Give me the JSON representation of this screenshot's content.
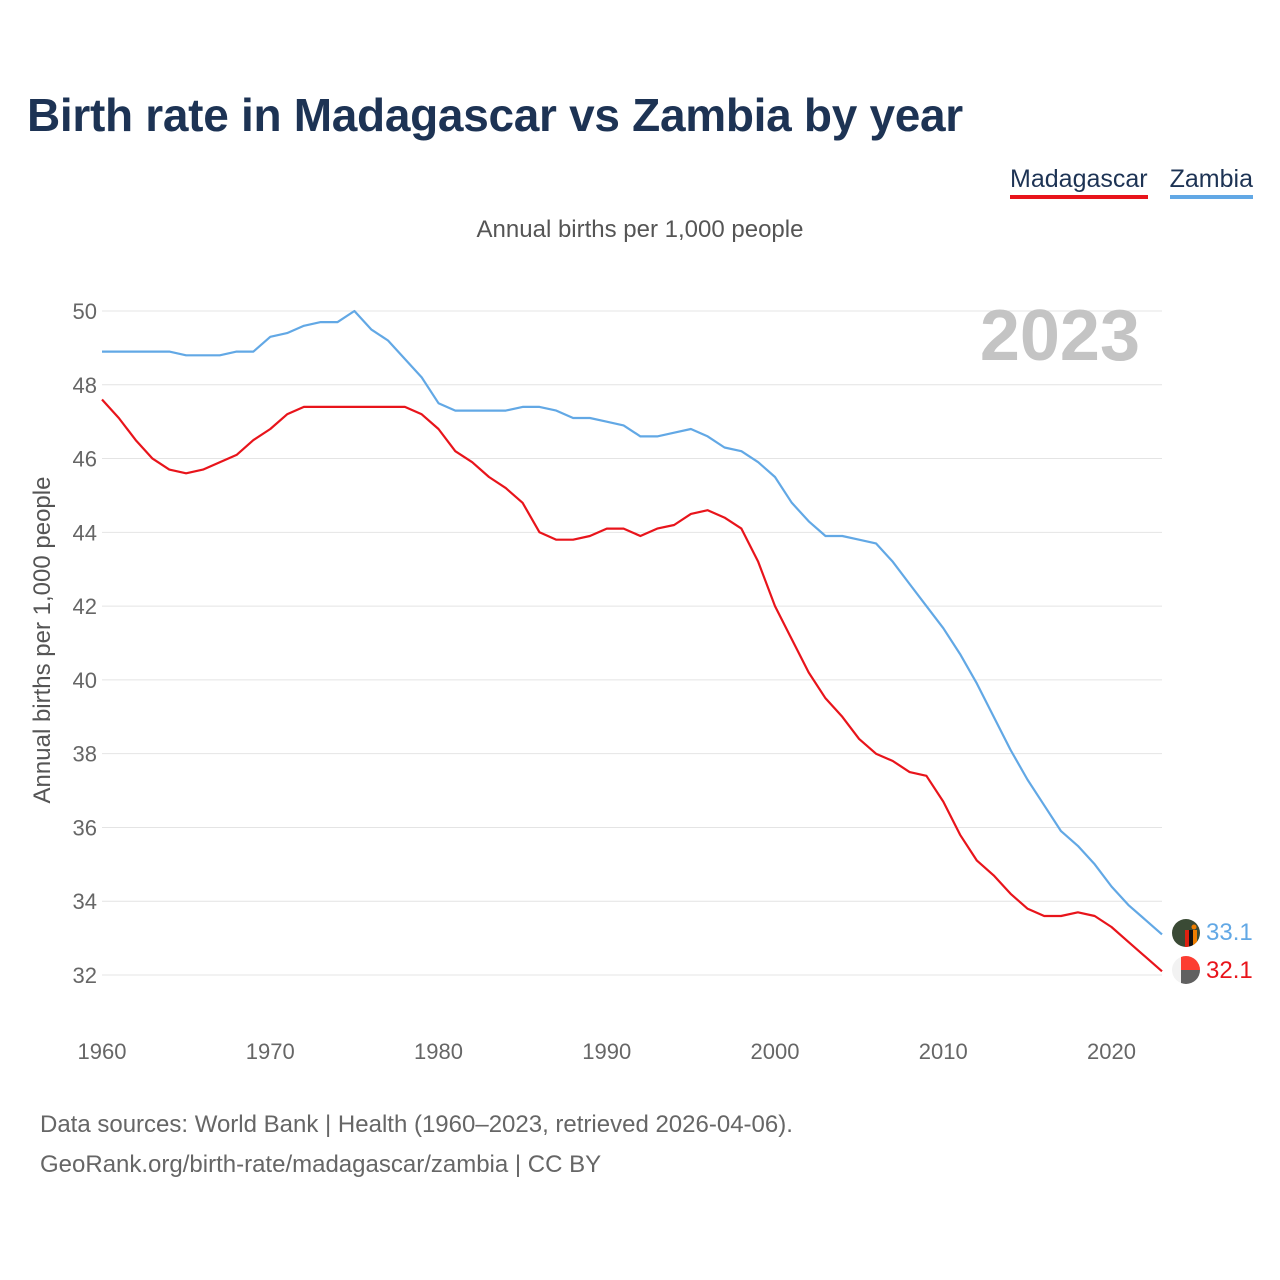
{
  "chart_data": {
    "type": "line",
    "title": "Birth rate in Madagascar vs Zambia by year",
    "subtitle": "Annual births per 1,000 people",
    "ylabel": "Annual births per 1,000 people",
    "xlabel": "",
    "xlim": [
      1960,
      2023
    ],
    "ylim": [
      31.5,
      50.5
    ],
    "yticks": [
      32,
      34,
      36,
      38,
      40,
      42,
      44,
      46,
      48,
      50
    ],
    "xticks": [
      1960,
      1970,
      1980,
      1990,
      2000,
      2010,
      2020
    ],
    "year_label": "2023",
    "legend_position": "top-right",
    "x": [
      1960,
      1961,
      1962,
      1963,
      1964,
      1965,
      1966,
      1967,
      1968,
      1969,
      1970,
      1971,
      1972,
      1973,
      1974,
      1975,
      1976,
      1977,
      1978,
      1979,
      1980,
      1981,
      1982,
      1983,
      1984,
      1985,
      1986,
      1987,
      1988,
      1989,
      1990,
      1991,
      1992,
      1993,
      1994,
      1995,
      1996,
      1997,
      1998,
      1999,
      2000,
      2001,
      2002,
      2003,
      2004,
      2005,
      2006,
      2007,
      2008,
      2009,
      2010,
      2011,
      2012,
      2013,
      2014,
      2015,
      2016,
      2017,
      2018,
      2019,
      2020,
      2021,
      2022,
      2023
    ],
    "series": [
      {
        "name": "Madagascar",
        "color": "#e8141b",
        "end_label": "32.1",
        "values": [
          47.6,
          47.1,
          46.5,
          46.0,
          45.7,
          45.6,
          45.7,
          45.9,
          46.1,
          46.5,
          46.8,
          47.2,
          47.4,
          47.4,
          47.4,
          47.4,
          47.4,
          47.4,
          47.4,
          47.2,
          46.8,
          46.2,
          45.9,
          45.5,
          45.2,
          44.8,
          44.0,
          43.8,
          43.8,
          43.9,
          44.1,
          44.1,
          43.9,
          44.1,
          44.2,
          44.5,
          44.6,
          44.4,
          44.1,
          43.2,
          42.0,
          41.1,
          40.2,
          39.5,
          39.0,
          38.4,
          38.0,
          37.8,
          37.5,
          37.4,
          36.7,
          35.8,
          35.1,
          34.7,
          34.2,
          33.8,
          33.6,
          33.6,
          33.7,
          33.6,
          33.3,
          32.9,
          32.5,
          32.1
        ]
      },
      {
        "name": "Zambia",
        "color": "#62a8e5",
        "end_label": "33.1",
        "values": [
          48.9,
          48.9,
          48.9,
          48.9,
          48.9,
          48.8,
          48.8,
          48.8,
          48.9,
          48.9,
          49.3,
          49.4,
          49.6,
          49.7,
          49.7,
          50.0,
          49.5,
          49.2,
          48.7,
          48.2,
          47.5,
          47.3,
          47.3,
          47.3,
          47.3,
          47.4,
          47.4,
          47.3,
          47.1,
          47.1,
          47.0,
          46.9,
          46.6,
          46.6,
          46.7,
          46.8,
          46.6,
          46.3,
          46.2,
          45.9,
          45.5,
          44.8,
          44.3,
          43.9,
          43.9,
          43.8,
          43.7,
          43.2,
          42.6,
          42.0,
          41.4,
          40.7,
          39.9,
          39.0,
          38.1,
          37.3,
          36.6,
          35.9,
          35.5,
          35.0,
          34.4,
          33.9,
          33.5,
          33.1
        ]
      }
    ]
  },
  "footer": {
    "line1": "Data sources: World Bank | Health (1960–2023, retrieved 2026-04-06).",
    "line2": "GeoRank.org/birth-rate/madagascar/zambia | CC BY"
  },
  "colors": {
    "title": "#1d3354",
    "grid": "#e4e4e4",
    "tick": "#666666",
    "year": "#c4c4c4"
  },
  "icons": {
    "madagascar": "madagascar-flag-icon",
    "zambia": "zambia-flag-icon"
  }
}
